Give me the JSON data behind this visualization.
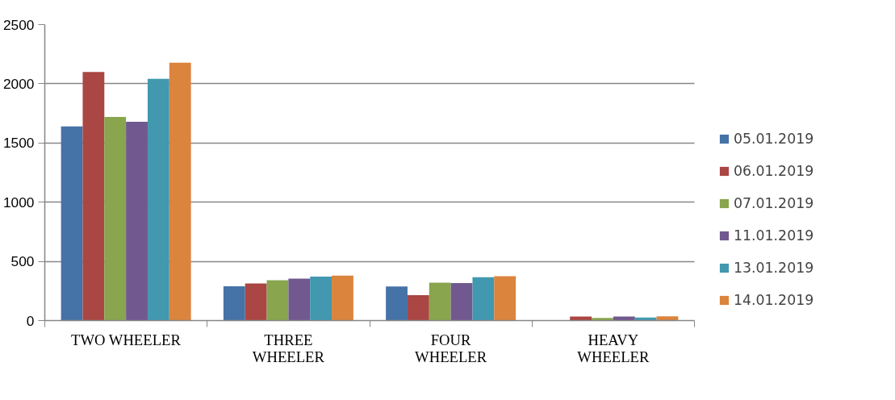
{
  "chart_data": {
    "type": "bar",
    "categories": [
      "TWO WHEELER",
      "THREE WHEELER",
      "FOUR WHEELER",
      "HEAVY WHEELER"
    ],
    "series": [
      {
        "name": "05.01.2019",
        "color": "#4572a7",
        "values": [
          1640,
          290,
          288,
          null
        ]
      },
      {
        "name": "06.01.2019",
        "color": "#aa4643",
        "values": [
          2100,
          313,
          215,
          34
        ]
      },
      {
        "name": "07.01.2019",
        "color": "#89a54e",
        "values": [
          1720,
          341,
          321,
          22
        ]
      },
      {
        "name": "11.01.2019",
        "color": "#71588f",
        "values": [
          1679,
          355,
          316,
          34
        ]
      },
      {
        "name": "13.01.2019",
        "color": "#4198af",
        "values": [
          2042,
          371,
          366,
          25
        ]
      },
      {
        "name": "14.01.2019",
        "color": "#db843d",
        "values": [
          2178,
          380,
          374,
          36
        ]
      }
    ],
    "ylim": [
      0,
      2500
    ],
    "yticks": [
      0,
      500,
      1000,
      1500,
      2000,
      2500
    ],
    "grid": "y",
    "legend": "right"
  }
}
